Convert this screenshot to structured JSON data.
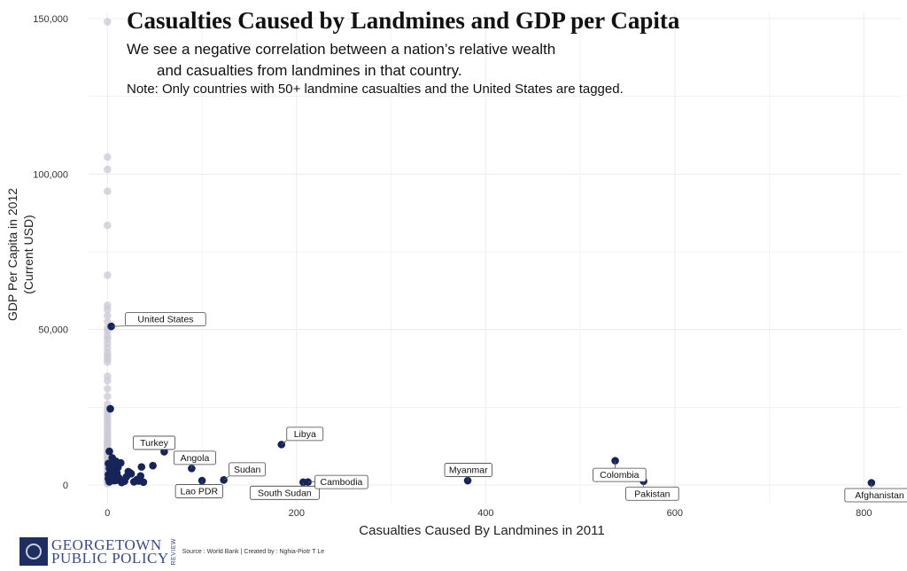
{
  "chart_data": {
    "type": "scatter",
    "title": "Casualties Caused by Landmines and GDP per Capita",
    "subtitle_line1": "We see a negative correlation between a nation’s relative wealth",
    "subtitle_line2": "and casualties from landmines in that country.",
    "note": "Note: Only countries with 50+ landmine casualties and the United States are tagged.",
    "xlabel": "Casualties Caused By Landmines in 2011",
    "ylabel_line1": "GDP Per Capita in 2012",
    "ylabel_line2": "(Current USD)",
    "xlim": [
      -20,
      840
    ],
    "ylim": [
      -6000,
      152000
    ],
    "x_ticks": [
      0,
      200,
      400,
      600,
      800
    ],
    "x_tick_labels": [
      "0",
      "200",
      "400",
      "600",
      "800"
    ],
    "y_ticks": [
      0,
      50000,
      100000,
      150000
    ],
    "y_tick_labels": [
      "0",
      "50,000",
      "100,000",
      "150,000"
    ],
    "grid": true,
    "colors": {
      "highlight": "#16245a",
      "background_points": "#c9c9d4",
      "grid": "#ececec"
    },
    "series": [
      {
        "role": "no-casualties",
        "points": [
          [
            0,
            149000
          ],
          [
            0,
            105500
          ],
          [
            0,
            101500
          ],
          [
            0,
            94500
          ],
          [
            0,
            83500
          ],
          [
            0,
            67500
          ],
          [
            0,
            57800
          ],
          [
            0,
            56500
          ],
          [
            0,
            54500
          ],
          [
            0,
            52500
          ],
          [
            0,
            50500
          ],
          [
            0,
            49500
          ],
          [
            0,
            48000
          ],
          [
            0,
            47000
          ],
          [
            0,
            45500
          ],
          [
            0,
            44000
          ],
          [
            0,
            42500
          ],
          [
            0,
            41500
          ],
          [
            0,
            40500
          ],
          [
            0,
            39500
          ],
          [
            0,
            35000
          ],
          [
            0,
            33500
          ],
          [
            0,
            31000
          ],
          [
            0,
            28500
          ],
          [
            0,
            26000
          ],
          [
            0,
            24500
          ],
          [
            0,
            23500
          ],
          [
            0,
            22500
          ],
          [
            0,
            21500
          ],
          [
            0,
            20500
          ],
          [
            0,
            19500
          ],
          [
            0,
            18500
          ],
          [
            0,
            17500
          ],
          [
            0,
            16500
          ],
          [
            0,
            15500
          ],
          [
            0,
            14500
          ],
          [
            0,
            13800
          ],
          [
            0,
            13000
          ],
          [
            0,
            12200
          ],
          [
            0,
            11400
          ],
          [
            0,
            10600
          ],
          [
            0,
            9800
          ],
          [
            0,
            9000
          ],
          [
            0,
            8200
          ],
          [
            0,
            7400
          ],
          [
            0,
            6600
          ],
          [
            0,
            5800
          ],
          [
            0,
            5000
          ],
          [
            0,
            4200
          ],
          [
            0,
            3400
          ],
          [
            0,
            2600
          ],
          [
            0,
            1800
          ],
          [
            0,
            1000
          ],
          [
            0,
            400
          ]
        ]
      },
      {
        "role": "with-casualties",
        "points": [
          [
            3,
            24500
          ],
          [
            2,
            10800
          ],
          [
            5,
            8700
          ],
          [
            9,
            7600
          ],
          [
            1,
            6900
          ],
          [
            3,
            6400
          ],
          [
            6,
            5900
          ],
          [
            2,
            5300
          ],
          [
            8,
            4900
          ],
          [
            4,
            4400
          ],
          [
            10,
            3800
          ],
          [
            1,
            3300
          ],
          [
            5,
            2800
          ],
          [
            12,
            2300
          ],
          [
            3,
            1800
          ],
          [
            7,
            1400
          ],
          [
            2,
            1000
          ],
          [
            15,
            800
          ],
          [
            18,
            1200
          ],
          [
            22,
            4300
          ],
          [
            25,
            3600
          ],
          [
            28,
            1000
          ],
          [
            33,
            1300
          ],
          [
            35,
            2900
          ],
          [
            36,
            5800
          ],
          [
            48,
            6200
          ],
          [
            24,
            3900
          ],
          [
            20,
            2600
          ],
          [
            14,
            7100
          ],
          [
            11,
            5600
          ],
          [
            31,
            1700
          ],
          [
            38,
            900
          ],
          [
            6,
            3100
          ],
          [
            1,
            2000
          ],
          [
            9,
            1500
          ]
        ]
      }
    ],
    "labeled_points": [
      {
        "name": "United States",
        "x": 4,
        "y": 51000
      },
      {
        "name": "Turkey",
        "x": 60,
        "y": 10700
      },
      {
        "name": "Angola",
        "x": 89,
        "y": 5300
      },
      {
        "name": "Lao PDR",
        "x": 100,
        "y": 1400
      },
      {
        "name": "Sudan",
        "x": 123,
        "y": 1600
      },
      {
        "name": "Libya",
        "x": 184,
        "y": 13000
      },
      {
        "name": "South Sudan",
        "x": 207,
        "y": 900
      },
      {
        "name": "Cambodia",
        "x": 212,
        "y": 950
      },
      {
        "name": "Myanmar",
        "x": 381,
        "y": 1400
      },
      {
        "name": "Colombia",
        "x": 537,
        "y": 7800
      },
      {
        "name": "Pakistan",
        "x": 567,
        "y": 1200
      },
      {
        "name": "Afghanistan",
        "x": 808,
        "y": 700
      }
    ]
  },
  "footer": {
    "logo_line1": "GEORGETOWN",
    "logo_line2": "PUBLIC POLICY",
    "logo_review": "REVIEW",
    "credit": "Source : World Bank | Created by : Nghia-Piotr T Le"
  }
}
